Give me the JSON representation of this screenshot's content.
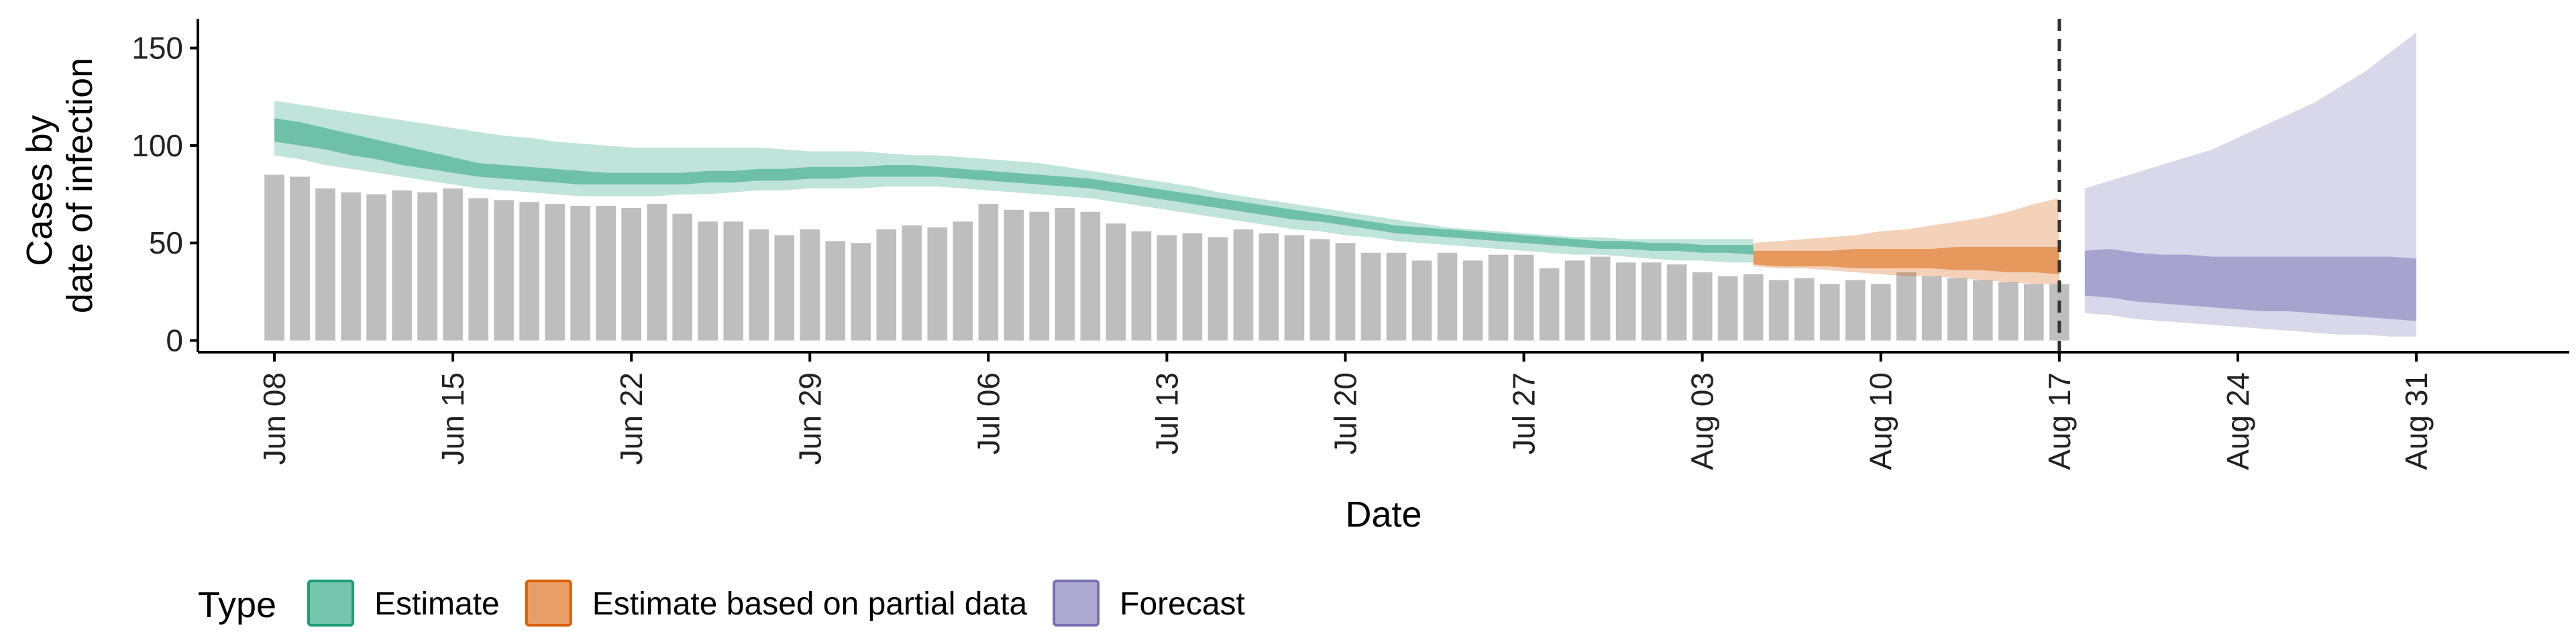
{
  "chart_data": {
    "type": "bar",
    "xlabel": "Date",
    "ylabel_lines": [
      "Cases by",
      "date of infection"
    ],
    "ylim": [
      -6,
      165
    ],
    "yticks": [
      0,
      50,
      100,
      150
    ],
    "x_range": [
      "2020-06-05",
      "2020-09-06"
    ],
    "xticks": [
      "Jun 08",
      "Jun 15",
      "Jun 22",
      "Jun 29",
      "Jul 06",
      "Jul 13",
      "Jul 20",
      "Jul 27",
      "Aug 03",
      "Aug 10",
      "Aug 17",
      "Aug 24",
      "Aug 31"
    ],
    "xtick_dates": [
      "2020-06-08",
      "2020-06-15",
      "2020-06-22",
      "2020-06-29",
      "2020-07-06",
      "2020-07-13",
      "2020-07-20",
      "2020-07-27",
      "2020-08-03",
      "2020-08-10",
      "2020-08-17",
      "2020-08-24",
      "2020-08-31"
    ],
    "forecast_start_line": "2020-08-17",
    "bars": {
      "start_date": "2020-06-08",
      "color": "#bebebe",
      "values": [
        85,
        84,
        78,
        76,
        75,
        77,
        76,
        78,
        73,
        72,
        71,
        70,
        69,
        69,
        68,
        70,
        65,
        61,
        61,
        57,
        54,
        57,
        51,
        50,
        57,
        59,
        58,
        61,
        70,
        67,
        66,
        68,
        66,
        60,
        56,
        54,
        55,
        53,
        57,
        55,
        54,
        52,
        50,
        45,
        45,
        41,
        45,
        41,
        44,
        44,
        37,
        41,
        43,
        40,
        40,
        39,
        35,
        33,
        34,
        31,
        32,
        29,
        31,
        29,
        35,
        33,
        32,
        31,
        30,
        29,
        29
      ]
    },
    "series": [
      {
        "name": "Estimate",
        "color": "#1b9e77",
        "start_date": "2020-06-08",
        "lower_90": [
          95,
          93,
          90,
          88,
          86,
          84,
          82,
          80,
          78,
          77,
          76,
          75,
          74,
          74,
          74,
          74,
          75,
          75,
          76,
          77,
          77,
          78,
          78,
          78,
          79,
          79,
          79,
          78,
          77,
          76,
          75,
          74,
          73,
          71,
          69,
          67,
          65,
          63,
          61,
          59,
          57,
          56,
          54,
          53,
          51,
          50,
          49,
          48,
          47,
          46,
          45,
          44,
          44,
          43,
          42,
          41,
          41,
          40,
          40
        ],
        "upper_90": [
          123,
          121,
          119,
          117,
          115,
          113,
          111,
          109,
          107,
          105,
          104,
          102,
          101,
          100,
          99,
          99,
          99,
          99,
          99,
          99,
          98,
          97,
          97,
          97,
          96,
          95,
          95,
          94,
          93,
          92,
          91,
          89,
          87,
          85,
          83,
          81,
          79,
          76,
          74,
          72,
          70,
          68,
          66,
          64,
          62,
          60,
          58,
          57,
          56,
          55,
          54,
          53,
          53,
          52,
          52,
          52,
          52,
          52,
          52
        ],
        "lower_50": [
          102,
          100,
          98,
          95,
          93,
          90,
          88,
          86,
          84,
          83,
          82,
          81,
          80,
          80,
          80,
          80,
          80,
          81,
          81,
          82,
          82,
          83,
          83,
          84,
          84,
          84,
          84,
          83,
          82,
          81,
          80,
          79,
          78,
          76,
          74,
          72,
          70,
          68,
          66,
          64,
          62,
          61,
          59,
          57,
          55,
          54,
          53,
          52,
          51,
          50,
          49,
          48,
          47,
          47,
          46,
          46,
          45,
          45,
          44
        ],
        "upper_50": [
          114,
          112,
          109,
          106,
          103,
          100,
          97,
          94,
          91,
          90,
          89,
          88,
          87,
          86,
          86,
          86,
          86,
          87,
          87,
          88,
          88,
          89,
          89,
          89,
          90,
          90,
          89,
          88,
          87,
          86,
          85,
          84,
          83,
          81,
          79,
          77,
          75,
          73,
          71,
          69,
          67,
          65,
          63,
          61,
          59,
          58,
          57,
          56,
          55,
          54,
          53,
          52,
          51,
          51,
          50,
          50,
          49,
          49,
          49
        ]
      },
      {
        "name": "Estimate based on partial data",
        "color": "#d95f02",
        "start_date": "2020-08-05",
        "lower_90": [
          38,
          37,
          37,
          36,
          35,
          34,
          33,
          33,
          32,
          31,
          30,
          29,
          29
        ],
        "upper_90": [
          50,
          51,
          52,
          53,
          54,
          56,
          57,
          59,
          61,
          63,
          66,
          70,
          73
        ],
        "lower_50": [
          39,
          38,
          38,
          38,
          37,
          37,
          37,
          37,
          36,
          36,
          35,
          35,
          34
        ],
        "upper_50": [
          46,
          46,
          46,
          46,
          47,
          47,
          47,
          47,
          48,
          48,
          48,
          48,
          48
        ]
      },
      {
        "name": "Forecast",
        "color": "#7570b3",
        "start_date": "2020-08-18",
        "lower_90": [
          14,
          13,
          11,
          10,
          9,
          8,
          7,
          6,
          5,
          4,
          3,
          3,
          2,
          2
        ],
        "upper_90": [
          78,
          82,
          86,
          90,
          94,
          98,
          104,
          110,
          116,
          122,
          130,
          138,
          148,
          158
        ],
        "lower_50": [
          23,
          22,
          20,
          19,
          18,
          17,
          16,
          15,
          15,
          14,
          13,
          12,
          11,
          10
        ],
        "upper_50": [
          46,
          47,
          45,
          44,
          44,
          43,
          43,
          43,
          43,
          43,
          43,
          43,
          43,
          42
        ]
      }
    ],
    "legend": {
      "title": "Type",
      "position": "bottom",
      "items": [
        "Estimate",
        "Estimate based on partial data",
        "Forecast"
      ]
    },
    "grid": false
  }
}
